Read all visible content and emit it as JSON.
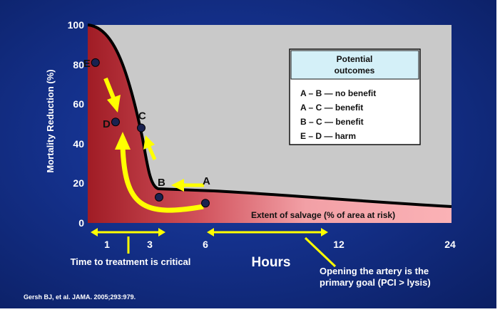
{
  "y_axis": {
    "label": "Mortality Reduction (%)",
    "ticks": [
      "0",
      "20",
      "40",
      "60",
      "80",
      "100"
    ]
  },
  "x_axis": {
    "label": "Hours",
    "ticks": [
      "1",
      "3",
      "6",
      "12",
      "24"
    ]
  },
  "points": [
    {
      "label": "E",
      "hour": 0.4,
      "value": 81
    },
    {
      "label": "D",
      "hour": 1.4,
      "value": 51
    },
    {
      "label": "C",
      "hour": 2.6,
      "value": 48
    },
    {
      "label": "B",
      "hour": 3.5,
      "value": 13
    },
    {
      "label": "A",
      "hour": 6,
      "value": 10
    }
  ],
  "legend": {
    "title_line1": "Potential",
    "title_line2": "outcomes",
    "items": [
      "A – B — no benefit",
      "A – C — benefit",
      "B – C — benefit",
      "E – D — harm"
    ]
  },
  "salvage_label": "Extent of salvage (% of area at risk)",
  "time_note": "Time to treatment is critical",
  "artery_note_line1": "Opening the artery is the",
  "artery_note_line2": "primary goal (PCI > lysis)",
  "citation": "Gersh BJ, et al. JAMA. 2005;293:979.",
  "colors": {
    "plot_bg": "#c9c9c9",
    "salvage_fill_dark": "#a01c25",
    "salvage_fill_light": "#f7a4a8",
    "arrow": "#ffff00",
    "legend_header": "#d4f0f8"
  }
}
